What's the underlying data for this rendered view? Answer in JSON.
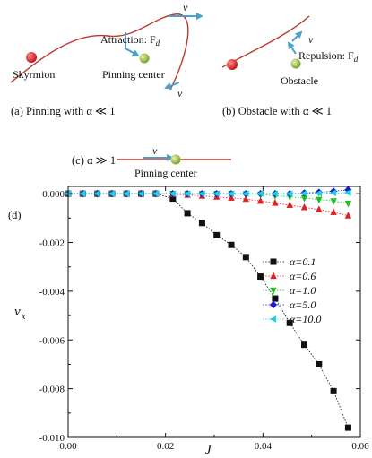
{
  "panel_a": {
    "skyrmion_label": "Skyrmion",
    "attraction_label": "Attraction: F",
    "force_sub": "d",
    "pinning_label": "Pinning center",
    "velocity_label": "v",
    "caption": "(a) Pinning with α ≪ 1"
  },
  "panel_b": {
    "repulsion_label": "Repulsion: F",
    "force_sub": "d",
    "obstacle_label": "Obstacle",
    "velocity_label": "v",
    "caption": "(b) Obstacle with α ≪ 1"
  },
  "panel_c": {
    "caption": "(c) α ≫ 1",
    "velocity_label": "v",
    "pinning_label": "Pinning center"
  },
  "panel_d": {
    "label": "(d)"
  },
  "colors": {
    "skyrmion": "#d03030",
    "pinning": "#9bc24a",
    "arrow": "#4aa0c8",
    "track": "#c0392b"
  },
  "chart_data": {
    "type": "line",
    "xlabel": "J",
    "ylabel": "v",
    "ylabel_sub": "x",
    "xlim": [
      0,
      0.06
    ],
    "ylim": [
      -0.01,
      0.0003
    ],
    "x_ticks": [
      "0.00",
      "0.02",
      "0.04",
      "0.06"
    ],
    "y_ticks": [
      "0.000",
      "-0.002",
      "-0.004",
      "-0.006",
      "-0.008",
      "-0.010"
    ],
    "legend_position": "right",
    "series": [
      {
        "name": "α=0.1",
        "color": "#111111",
        "marker": "square",
        "x": [
          0.0,
          0.003,
          0.006,
          0.009,
          0.012,
          0.015,
          0.018,
          0.0215,
          0.0245,
          0.0275,
          0.0305,
          0.0335,
          0.0365,
          0.0395,
          0.0425,
          0.0455,
          0.0485,
          0.0515,
          0.0545,
          0.0575
        ],
        "y": [
          0,
          0,
          0,
          0,
          0,
          0,
          0,
          -0.0002,
          -0.0008,
          -0.0012,
          -0.0017,
          -0.0021,
          -0.0026,
          -0.0034,
          -0.0043,
          -0.0053,
          -0.0062,
          -0.007,
          -0.0081,
          -0.0096
        ]
      },
      {
        "name": "α=0.6",
        "color": "#e02020",
        "marker": "triangle-up",
        "x": [
          0.0,
          0.003,
          0.006,
          0.009,
          0.012,
          0.015,
          0.018,
          0.0215,
          0.0245,
          0.0275,
          0.0305,
          0.0335,
          0.0365,
          0.0395,
          0.0425,
          0.0455,
          0.0485,
          0.0515,
          0.0545,
          0.0575
        ],
        "y": [
          0,
          0,
          0,
          0,
          0,
          0,
          0,
          -2e-05,
          -5e-05,
          -9e-05,
          -0.00013,
          -0.00017,
          -0.00022,
          -0.0003,
          -0.00038,
          -0.00047,
          -0.00056,
          -0.00065,
          -0.00076,
          -0.0009
        ]
      },
      {
        "name": "α=1.0",
        "color": "#20c020",
        "marker": "triangle-down",
        "x": [
          0.0,
          0.003,
          0.006,
          0.009,
          0.012,
          0.015,
          0.018,
          0.0215,
          0.0245,
          0.0275,
          0.0305,
          0.0335,
          0.0365,
          0.0395,
          0.0425,
          0.0455,
          0.0485,
          0.0515,
          0.0545,
          0.0575
        ],
        "y": [
          0,
          0,
          0,
          0,
          0,
          0,
          0,
          0,
          0,
          0,
          0,
          0,
          -1e-05,
          -4e-05,
          -8e-05,
          -0.00012,
          -0.00018,
          -0.00024,
          -0.0003,
          -0.0004
        ]
      },
      {
        "name": "α=5.0",
        "color": "#1a1ad0",
        "marker": "diamond",
        "x": [
          0.0,
          0.003,
          0.006,
          0.009,
          0.012,
          0.015,
          0.018,
          0.0215,
          0.0245,
          0.0275,
          0.0305,
          0.0335,
          0.0365,
          0.0395,
          0.0425,
          0.0455,
          0.0485,
          0.0515,
          0.0545,
          0.0575
        ],
        "y": [
          0,
          0,
          0,
          0,
          0,
          0,
          0,
          0,
          0,
          0,
          0,
          0,
          0,
          0,
          0,
          0,
          3e-05,
          6e-05,
          0.0001,
          0.00016
        ]
      },
      {
        "name": "α=10.0",
        "color": "#20d0e0",
        "marker": "triangle-left",
        "x": [
          0.0,
          0.003,
          0.006,
          0.009,
          0.012,
          0.015,
          0.018,
          0.0215,
          0.0245,
          0.0275,
          0.0305,
          0.0335,
          0.0365,
          0.0395,
          0.0425,
          0.0455,
          0.0485,
          0.0515,
          0.0545,
          0.0575
        ],
        "y": [
          0,
          0,
          0,
          0,
          0,
          0,
          0,
          0,
          0,
          0,
          0,
          0,
          0,
          0,
          0,
          0,
          1e-05,
          2e-05,
          3e-05,
          4e-05
        ]
      }
    ]
  }
}
